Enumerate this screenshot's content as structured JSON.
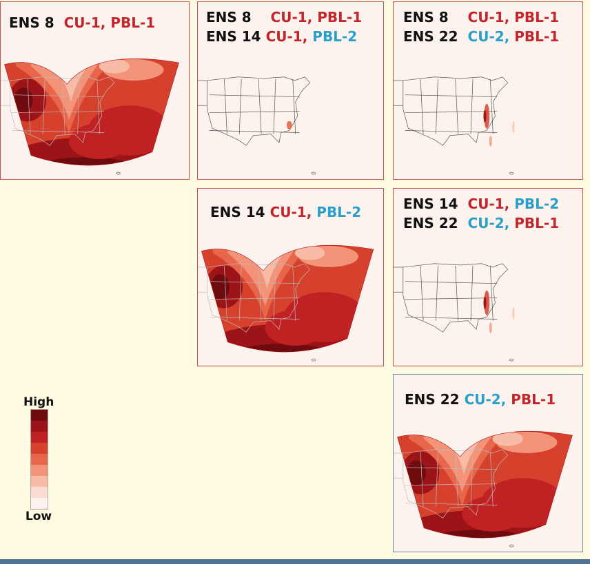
{
  "panels": [
    {
      "id": "p11",
      "rows": [
        {
          "ens": "ENS 8",
          "cu": "CU-1,",
          "pbl": "PBL-1",
          "cu_color": "red",
          "pbl_color": "red"
        }
      ],
      "kind": "full"
    },
    {
      "id": "p12",
      "rows": [
        {
          "ens": "ENS 8",
          "cu": "CU-1,",
          "pbl": "PBL-1",
          "cu_color": "red",
          "pbl_color": "red"
        },
        {
          "ens": "ENS 14",
          "cu": "CU-1,",
          "pbl": "PBL-2",
          "cu_color": "red",
          "pbl_color": "blue"
        }
      ],
      "kind": "diff-small"
    },
    {
      "id": "p13",
      "rows": [
        {
          "ens": "ENS 8",
          "cu": "CU-1,",
          "pbl": "PBL-1",
          "cu_color": "red",
          "pbl_color": "red"
        },
        {
          "ens": "ENS 22",
          "cu": "CU-2,",
          "pbl": "PBL-1",
          "cu_color": "blue",
          "pbl_color": "red"
        }
      ],
      "kind": "diff-coast"
    },
    {
      "id": "p22",
      "rows": [
        {
          "ens": "ENS 14",
          "cu": "CU-1,",
          "pbl": "PBL-2",
          "cu_color": "red",
          "pbl_color": "blue"
        }
      ],
      "kind": "full"
    },
    {
      "id": "p23",
      "rows": [
        {
          "ens": "ENS 14",
          "cu": "CU-1,",
          "pbl": "PBL-2",
          "cu_color": "red",
          "pbl_color": "blue"
        },
        {
          "ens": "ENS 22",
          "cu": "CU-2,",
          "pbl": "PBL-1",
          "cu_color": "blue",
          "pbl_color": "red"
        }
      ],
      "kind": "diff-coast"
    },
    {
      "id": "p33",
      "rows": [
        {
          "ens": "ENS 22",
          "cu": "CU-2,",
          "pbl": "PBL-1",
          "cu_color": "blue",
          "pbl_color": "red"
        }
      ],
      "kind": "full"
    }
  ],
  "legend": {
    "high": "High",
    "low": "Low",
    "colors": [
      "#6e0b0f",
      "#9c1418",
      "#c02123",
      "#d6412e",
      "#e8674c",
      "#f39378",
      "#f8bba6",
      "#fbdcd2",
      "#fdf1ee"
    ]
  },
  "colors": {
    "red_label": "#c0262c",
    "blue_label": "#2a9fc8",
    "background": "#fffbe3"
  }
}
